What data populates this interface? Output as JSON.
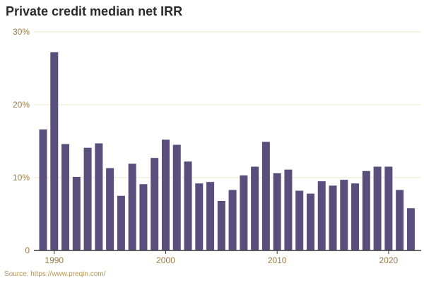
{
  "chart_data": {
    "type": "bar",
    "title": "Private credit median net IRR",
    "source": "Source: https://www.preqin.com/",
    "xlabel": "",
    "ylabel": "",
    "ylim": [
      0,
      30
    ],
    "y_ticks": [
      {
        "value": 0,
        "label": "0"
      },
      {
        "value": 10,
        "label": "10%"
      },
      {
        "value": 20,
        "label": "20%"
      },
      {
        "value": 30,
        "label": "30%"
      }
    ],
    "x_ticks": [
      {
        "value": 1990,
        "label": "1990"
      },
      {
        "value": 2000,
        "label": "2000"
      },
      {
        "value": 2010,
        "label": "2010"
      },
      {
        "value": 2020,
        "label": "2020"
      }
    ],
    "grid": true,
    "categories": [
      1989,
      1990,
      1991,
      1992,
      1993,
      1994,
      1995,
      1996,
      1997,
      1998,
      1999,
      2000,
      2001,
      2002,
      2003,
      2004,
      2005,
      2006,
      2007,
      2008,
      2009,
      2010,
      2011,
      2012,
      2013,
      2014,
      2015,
      2016,
      2017,
      2018,
      2019,
      2020,
      2021,
      2022
    ],
    "values": [
      16.6,
      27.2,
      14.6,
      10.1,
      14.1,
      14.7,
      11.3,
      7.5,
      11.9,
      9.1,
      12.7,
      15.2,
      14.5,
      12.2,
      9.2,
      9.4,
      6.8,
      8.3,
      10.3,
      11.5,
      14.9,
      10.6,
      11.1,
      8.2,
      7.8,
      9.5,
      8.9,
      9.7,
      9.2,
      10.9,
      11.5,
      11.5,
      8.3,
      5.8
    ],
    "colors": {
      "bar": "#5a4e7d",
      "grid": "#ece4c8",
      "axis": "#3a3a3a",
      "tick_text": "#9a7b45",
      "title": "#2b2b2b",
      "source": "#b8944d"
    }
  }
}
